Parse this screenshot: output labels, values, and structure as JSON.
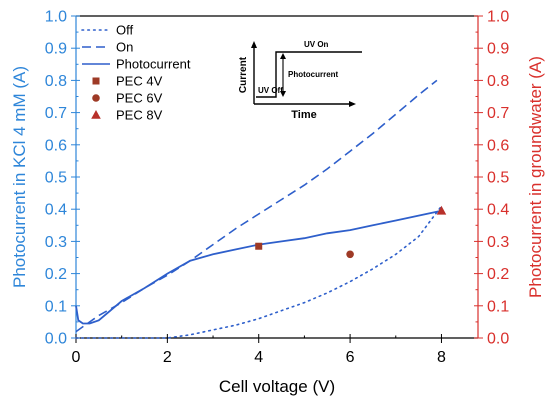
{
  "colors": {
    "left_axis": "#2E86D9",
    "right_axis": "#D9302C",
    "series_line": "#2E5FCB",
    "marker": "#9E3A26",
    "marker_light": "#C9705A"
  },
  "chart_data": {
    "type": "line",
    "xlabel": "Cell voltage (V)",
    "ylabel_left": "Photocurrent in KCl 4 mM (A)",
    "ylabel_right": "Photocurrent in groundwater (A)",
    "xlim": [
      0,
      8.8
    ],
    "ylim": [
      0,
      1.0
    ],
    "ylim_right": [
      0,
      1.0
    ],
    "x_ticks": [
      "0",
      "2",
      "4",
      "6",
      "8"
    ],
    "y_ticks": [
      "0.0",
      "0.1",
      "0.2",
      "0.3",
      "0.4",
      "0.5",
      "0.6",
      "0.7",
      "0.8",
      "0.9",
      "1.0"
    ],
    "legend_position": "top-left",
    "series": [
      {
        "name": "Off",
        "style": "dotted",
        "axis": "left",
        "x": [
          0,
          1,
          2,
          2.5,
          3,
          3.5,
          4,
          4.5,
          5,
          5.5,
          6,
          6.5,
          7,
          7.5,
          8
        ],
        "y": [
          0.0,
          0.0,
          0.0,
          0.01,
          0.025,
          0.04,
          0.06,
          0.085,
          0.11,
          0.14,
          0.175,
          0.215,
          0.26,
          0.315,
          0.41
        ]
      },
      {
        "name": "On",
        "style": "dashed",
        "axis": "left",
        "x": [
          0,
          0.5,
          1,
          1.5,
          2,
          2.5,
          3,
          3.5,
          4,
          4.5,
          5,
          5.5,
          6,
          6.5,
          7,
          7.5,
          7.9
        ],
        "y": [
          0.02,
          0.07,
          0.11,
          0.155,
          0.195,
          0.24,
          0.29,
          0.34,
          0.385,
          0.43,
          0.475,
          0.525,
          0.58,
          0.635,
          0.695,
          0.755,
          0.8
        ]
      },
      {
        "name": "Photocurrent",
        "style": "solid",
        "axis": "left",
        "x": [
          0,
          0.05,
          0.15,
          0.3,
          0.5,
          1,
          1.5,
          2,
          2.5,
          3,
          3.5,
          4,
          4.5,
          5,
          5.5,
          6,
          6.5,
          7,
          7.5,
          8
        ],
        "y": [
          0.1,
          0.055,
          0.045,
          0.045,
          0.055,
          0.115,
          0.155,
          0.2,
          0.24,
          0.26,
          0.275,
          0.29,
          0.3,
          0.31,
          0.325,
          0.335,
          0.35,
          0.365,
          0.38,
          0.395
        ]
      },
      {
        "name": "PEC 4V",
        "style": "marker",
        "marker": "square",
        "axis": "right",
        "x": [
          4
        ],
        "y": [
          0.285
        ]
      },
      {
        "name": "PEC 6V",
        "style": "marker",
        "marker": "circle",
        "axis": "right",
        "x": [
          6
        ],
        "y": [
          0.26
        ]
      },
      {
        "name": "PEC 8V",
        "style": "marker",
        "marker": "triangle",
        "axis": "right",
        "x": [
          8
        ],
        "y": [
          0.395
        ]
      }
    ],
    "inset": {
      "y_label": "Current",
      "x_label": "Time",
      "off_label": "UV Off",
      "on_label": "UV On",
      "delta_label": "Photocurrent"
    }
  }
}
